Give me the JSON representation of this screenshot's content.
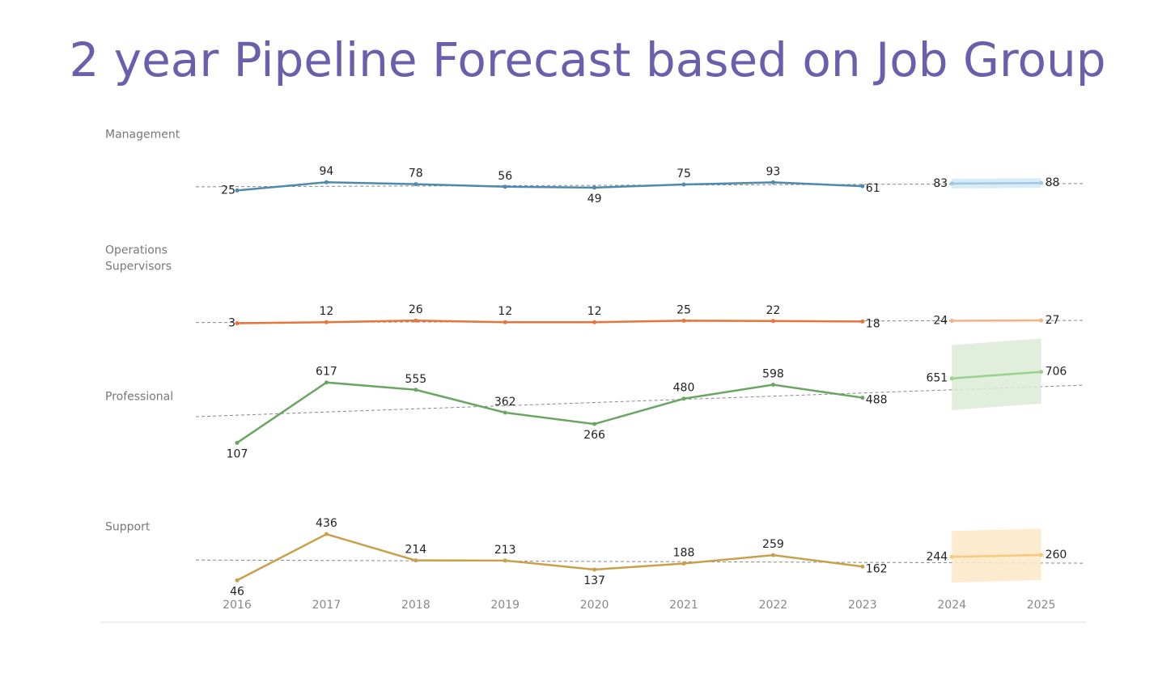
{
  "title": "2 year Pipeline Forecast based on Job Group",
  "categories": [
    "2016",
    "2017",
    "2018",
    "2019",
    "2020",
    "2021",
    "2022",
    "2023",
    "2024",
    "2025"
  ],
  "ylim": [
    0,
    1100
  ],
  "chart_data": [
    {
      "type": "line",
      "title": "Management",
      "color": "#4e89ae",
      "forecast_color": "#9cc9e6",
      "band_color": "#d4e8f7",
      "values": [
        25,
        94,
        78,
        56,
        49,
        75,
        93,
        61,
        null,
        null
      ],
      "forecast": [
        null,
        null,
        null,
        null,
        null,
        null,
        null,
        null,
        83,
        88
      ],
      "forecast_lower": [
        null,
        null,
        null,
        null,
        null,
        null,
        null,
        null,
        42,
        47
      ],
      "forecast_upper": [
        null,
        null,
        null,
        null,
        null,
        null,
        null,
        null,
        124,
        129
      ]
    },
    {
      "type": "line",
      "title": "Operations Supervisors",
      "color": "#e8743b",
      "forecast_color": "#f4b183",
      "values": [
        3,
        12,
        26,
        12,
        12,
        25,
        22,
        18,
        null,
        null
      ],
      "forecast": [
        null,
        null,
        null,
        null,
        null,
        null,
        null,
        null,
        24,
        27
      ]
    },
    {
      "type": "line",
      "title": "Professional",
      "color": "#6aa662",
      "forecast_color": "#99d18f",
      "band_color": "#dcebd6",
      "values": [
        107,
        617,
        555,
        362,
        266,
        480,
        598,
        488,
        null,
        null
      ],
      "forecast": [
        null,
        null,
        null,
        null,
        null,
        null,
        null,
        null,
        651,
        706
      ],
      "forecast_lower": [
        null,
        null,
        null,
        null,
        null,
        null,
        null,
        null,
        383,
        438
      ],
      "forecast_upper": [
        null,
        null,
        null,
        null,
        null,
        null,
        null,
        null,
        933,
        988
      ]
    },
    {
      "type": "line",
      "title": "Support",
      "color": "#c9a04a",
      "forecast_color": "#f7c978",
      "band_color": "#fde8c8",
      "values": [
        46,
        436,
        214,
        213,
        137,
        188,
        259,
        162,
        null,
        null
      ],
      "forecast": [
        null,
        null,
        null,
        null,
        null,
        null,
        null,
        null,
        244,
        260
      ],
      "forecast_lower": [
        null,
        null,
        null,
        null,
        null,
        null,
        null,
        null,
        27,
        48
      ],
      "forecast_upper": [
        null,
        null,
        null,
        null,
        null,
        null,
        null,
        null,
        463,
        483
      ]
    }
  ]
}
